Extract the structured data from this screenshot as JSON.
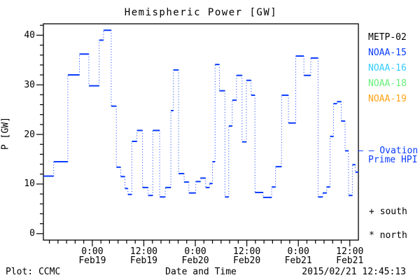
{
  "title": "Hemispheric Power [GW]",
  "axes": {
    "y_label": "P [GW]",
    "y_major_ticks": [
      0,
      10,
      20,
      30,
      40
    ],
    "y_minor_step": 2,
    "x_major_ticks": [
      {
        "hours": 24,
        "time": "0:00",
        "date": "Feb19"
      },
      {
        "hours": 36,
        "time": "12:00",
        "date": "Feb19"
      },
      {
        "hours": 48,
        "time": "0:00",
        "date": "Feb20"
      },
      {
        "hours": 60,
        "time": "12:00",
        "date": "Feb20"
      },
      {
        "hours": 72,
        "time": "0:00",
        "date": "Feb21"
      },
      {
        "hours": 84,
        "time": "12:00",
        "date": "Feb21"
      }
    ],
    "x_minor_step_hours": 2
  },
  "legend": {
    "satellites": [
      {
        "label": "METP-02",
        "color": "#000000"
      },
      {
        "label": "NOAA-15",
        "color": "#0b3cff"
      },
      {
        "label": "NOAA-16",
        "color": "#33ccff"
      },
      {
        "label": "NOAA-18",
        "color": "#66ee77"
      },
      {
        "label": "NOAA-19",
        "color": "#ffa214"
      }
    ],
    "ovation_line1": "– – Ovation",
    "ovation_line2": "Prime HPI",
    "ovation_color": "#0b3cff",
    "marker_south": "+ south",
    "marker_north": "* north"
  },
  "footer": {
    "left": "Plot: CCMC",
    "center": "Date and Time",
    "right": "2015/02/21 12:45:13"
  },
  "chart_data": {
    "type": "line",
    "style": "steps-post",
    "title": "Hemispheric Power [GW]",
    "xlabel": "Date and Time",
    "ylabel": "P [GW]",
    "line_color": "#0b3cff",
    "grid": false,
    "legend_position": "right-outside",
    "x_unit": "hours since 2015-02-18 00:00 UT",
    "xlim": [
      12.6,
      86.0
    ],
    "ylim": [
      -1.3,
      42.3
    ],
    "x_tick_hours": [
      24,
      36,
      48,
      60,
      72,
      84
    ],
    "x_tick_labels": [
      "0:00 Feb19",
      "12:00 Feb19",
      "0:00 Feb20",
      "12:00 Feb20",
      "0:00 Feb21",
      "12:00 Feb21"
    ],
    "steps": [
      [
        12.6,
        11.6
      ],
      [
        15.0,
        14.5
      ],
      [
        18.3,
        32.0
      ],
      [
        21.0,
        36.2
      ],
      [
        23.2,
        29.8
      ],
      [
        25.6,
        39.0
      ],
      [
        26.6,
        41.0
      ],
      [
        28.4,
        25.7
      ],
      [
        29.6,
        13.4
      ],
      [
        30.6,
        11.5
      ],
      [
        31.6,
        9.1
      ],
      [
        32.3,
        7.9
      ],
      [
        33.2,
        18.6
      ],
      [
        34.4,
        20.8
      ],
      [
        35.7,
        9.3
      ],
      [
        37.0,
        7.7
      ],
      [
        38.1,
        20.8
      ],
      [
        39.7,
        7.4
      ],
      [
        41.0,
        9.3
      ],
      [
        42.3,
        24.8
      ],
      [
        42.9,
        33.0
      ],
      [
        44.1,
        12.1
      ],
      [
        45.4,
        10.4
      ],
      [
        46.5,
        8.2
      ],
      [
        48.1,
        10.5
      ],
      [
        49.2,
        11.2
      ],
      [
        50.4,
        9.3
      ],
      [
        51.3,
        10.1
      ],
      [
        52.0,
        14.5
      ],
      [
        52.6,
        34.1
      ],
      [
        53.6,
        28.8
      ],
      [
        54.9,
        7.4
      ],
      [
        55.8,
        21.7
      ],
      [
        56.6,
        26.9
      ],
      [
        57.6,
        31.9
      ],
      [
        58.9,
        18.5
      ],
      [
        59.9,
        30.9
      ],
      [
        61.0,
        27.9
      ],
      [
        61.9,
        8.3
      ],
      [
        63.8,
        7.3
      ],
      [
        65.8,
        9.4
      ],
      [
        66.7,
        13.5
      ],
      [
        68.1,
        27.9
      ],
      [
        69.7,
        22.3
      ],
      [
        71.4,
        35.8
      ],
      [
        73.3,
        31.9
      ],
      [
        74.9,
        35.4
      ],
      [
        76.6,
        7.4
      ],
      [
        77.7,
        8.2
      ],
      [
        78.6,
        9.4
      ],
      [
        79.4,
        19.6
      ],
      [
        80.2,
        26.2
      ],
      [
        81.0,
        26.6
      ],
      [
        82.0,
        22.7
      ],
      [
        82.9,
        16.7
      ],
      [
        83.7,
        7.7
      ],
      [
        84.6,
        13.9
      ],
      [
        85.3,
        12.4
      ]
    ],
    "end_hours": 86.0
  }
}
